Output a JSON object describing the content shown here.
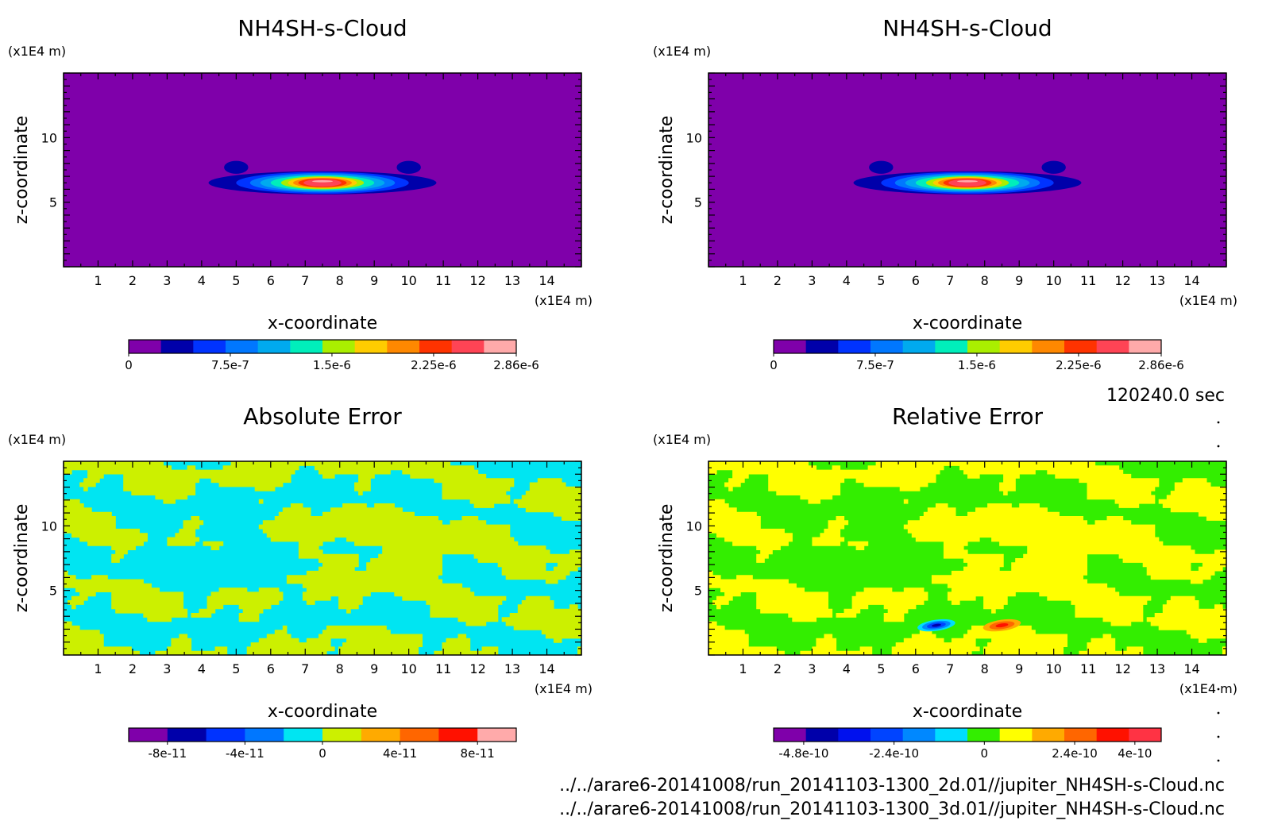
{
  "time_label": "120240.0 sec",
  "file_lines": [
    "../../arare6-20141008/run_20141103-1300_2d.01//jupiter_NH4SH-s-Cloud.nc",
    "../../arare6-20141008/run_20141103-1300_3d.01//jupiter_NH4SH-s-Cloud.nc"
  ],
  "colors": {
    "cloud_background": "#7f00aa",
    "abs_cyan": "#00e5f2",
    "abs_yellowgreen": "#ccf000",
    "rel_yellow": "#ffff00",
    "rel_green": "#33ee00"
  },
  "chart_data": [
    {
      "type": "heatmap",
      "title": "NH4SH-s-Cloud",
      "xlabel": "x-coordinate",
      "ylabel": "z-coordinate",
      "x_unit": "(x1E4 m)",
      "y_unit": "(x1E4 m)",
      "xlim": [
        0,
        15
      ],
      "ylim": [
        0,
        15
      ],
      "x_ticks": [
        1,
        2,
        3,
        4,
        5,
        6,
        7,
        8,
        9,
        10,
        11,
        12,
        13,
        14
      ],
      "y_ticks": [
        5,
        10
      ],
      "colorbar": {
        "colors": [
          "#7f00aa",
          "#0000aa",
          "#0033ff",
          "#0077ff",
          "#00aaee",
          "#00eebb",
          "#aaee00",
          "#ffcc00",
          "#ff8800",
          "#ff3300",
          "#ff4455",
          "#ffaaaa"
        ],
        "tick_labels": [
          "0",
          "7.5e-7",
          "1.5e-6",
          "2.25e-6",
          "2.86e-6"
        ],
        "tick_values": [
          0,
          7.5e-07,
          1.5e-06,
          2.25e-06,
          2.86e-06
        ],
        "range": [
          0,
          2.86e-06
        ]
      },
      "cloud_center": [
        7.5,
        6.5
      ]
    },
    {
      "type": "heatmap",
      "title": "NH4SH-s-Cloud",
      "xlabel": "x-coordinate",
      "ylabel": "z-coordinate",
      "x_unit": "(x1E4 m)",
      "y_unit": "(x1E4 m)",
      "xlim": [
        0,
        15
      ],
      "ylim": [
        0,
        15
      ],
      "x_ticks": [
        1,
        2,
        3,
        4,
        5,
        6,
        7,
        8,
        9,
        10,
        11,
        12,
        13,
        14
      ],
      "y_ticks": [
        5,
        10
      ],
      "colorbar": {
        "colors": [
          "#7f00aa",
          "#0000aa",
          "#0033ff",
          "#0077ff",
          "#00aaee",
          "#00eebb",
          "#aaee00",
          "#ffcc00",
          "#ff8800",
          "#ff3300",
          "#ff4455",
          "#ffaaaa"
        ],
        "tick_labels": [
          "0",
          "7.5e-7",
          "1.5e-6",
          "2.25e-6",
          "2.86e-6"
        ],
        "tick_values": [
          0,
          7.5e-07,
          1.5e-06,
          2.25e-06,
          2.86e-06
        ],
        "range": [
          0,
          2.86e-06
        ]
      },
      "cloud_center": [
        7.5,
        6.5
      ]
    },
    {
      "type": "heatmap",
      "title": "Absolute Error",
      "xlabel": "x-coordinate",
      "ylabel": "z-coordinate",
      "x_unit": "(x1E4 m)",
      "y_unit": "(x1E4 m)",
      "xlim": [
        0,
        15
      ],
      "ylim": [
        0,
        15
      ],
      "x_ticks": [
        1,
        2,
        3,
        4,
        5,
        6,
        7,
        8,
        9,
        10,
        11,
        12,
        13,
        14
      ],
      "y_ticks": [
        5,
        10
      ],
      "colorbar": {
        "colors": [
          "#7f00aa",
          "#0000aa",
          "#0033ff",
          "#0077ff",
          "#00e5f2",
          "#ccf000",
          "#ffaa00",
          "#ff6600",
          "#ff1100",
          "#ffaaaa"
        ],
        "tick_labels": [
          "-8e-11",
          "-4e-11",
          "0",
          "4e-11",
          "8e-11"
        ],
        "tick_values": [
          -8e-11,
          -4e-11,
          0,
          4e-11,
          8e-11
        ],
        "range": [
          -1e-10,
          1e-10
        ]
      }
    },
    {
      "type": "heatmap",
      "title": "Relative Error",
      "xlabel": "x-coordinate",
      "ylabel": "z-coordinate",
      "x_unit": "(x1E4 m)",
      "y_unit": "(x1E4 m)",
      "xlim": [
        0,
        15
      ],
      "ylim": [
        0,
        15
      ],
      "x_ticks": [
        1,
        2,
        3,
        4,
        5,
        6,
        7,
        8,
        9,
        10,
        11,
        12,
        13,
        14
      ],
      "y_ticks": [
        5,
        10
      ],
      "colorbar": {
        "colors": [
          "#7f00aa",
          "#0000aa",
          "#0011ee",
          "#0044ff",
          "#0088ff",
          "#00ddff",
          "#33ee00",
          "#ffff00",
          "#ffaa00",
          "#ff6600",
          "#ff1100",
          "#ff3344"
        ],
        "tick_labels": [
          "-4.8e-10",
          "-2.4e-10",
          "0",
          "2.4e-10",
          "4e-10"
        ],
        "tick_values": [
          -4.8e-10,
          -2.4e-10,
          0,
          2.4e-10,
          4e-10
        ],
        "range": [
          -5.6e-10,
          4.7e-10
        ]
      },
      "hotspots": [
        {
          "x": 6.6,
          "z": 2.3,
          "sign": "negative"
        },
        {
          "x": 8.5,
          "z": 2.3,
          "sign": "positive"
        }
      ]
    }
  ]
}
